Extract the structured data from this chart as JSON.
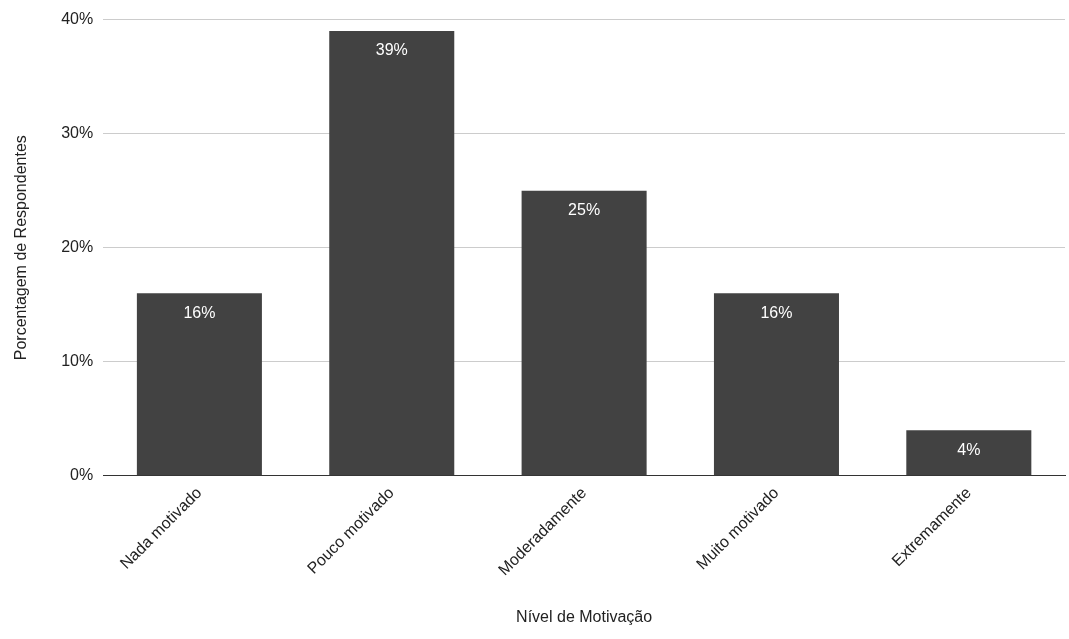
{
  "chart_data": {
    "type": "bar",
    "xlabel": "Nível de Motivação",
    "ylabel": "Porcentagem de Respondentes",
    "categories": [
      "Nada motivado",
      "Pouco motivado",
      "Moderadamente",
      "Muito motivado",
      "Extremamente"
    ],
    "values": [
      16,
      39,
      25,
      16,
      4
    ],
    "value_labels": [
      "16%",
      "39%",
      "25%",
      "16%",
      "4%"
    ],
    "color": "#424242",
    "ylim": [
      0,
      40
    ],
    "yticks": [
      {
        "value": 0,
        "label": "0%"
      },
      {
        "value": 10,
        "label": "10%"
      },
      {
        "value": 20,
        "label": "20%"
      },
      {
        "value": 30,
        "label": "30%"
      },
      {
        "value": 40,
        "label": "40%"
      }
    ],
    "grid": "y",
    "legend": false
  }
}
